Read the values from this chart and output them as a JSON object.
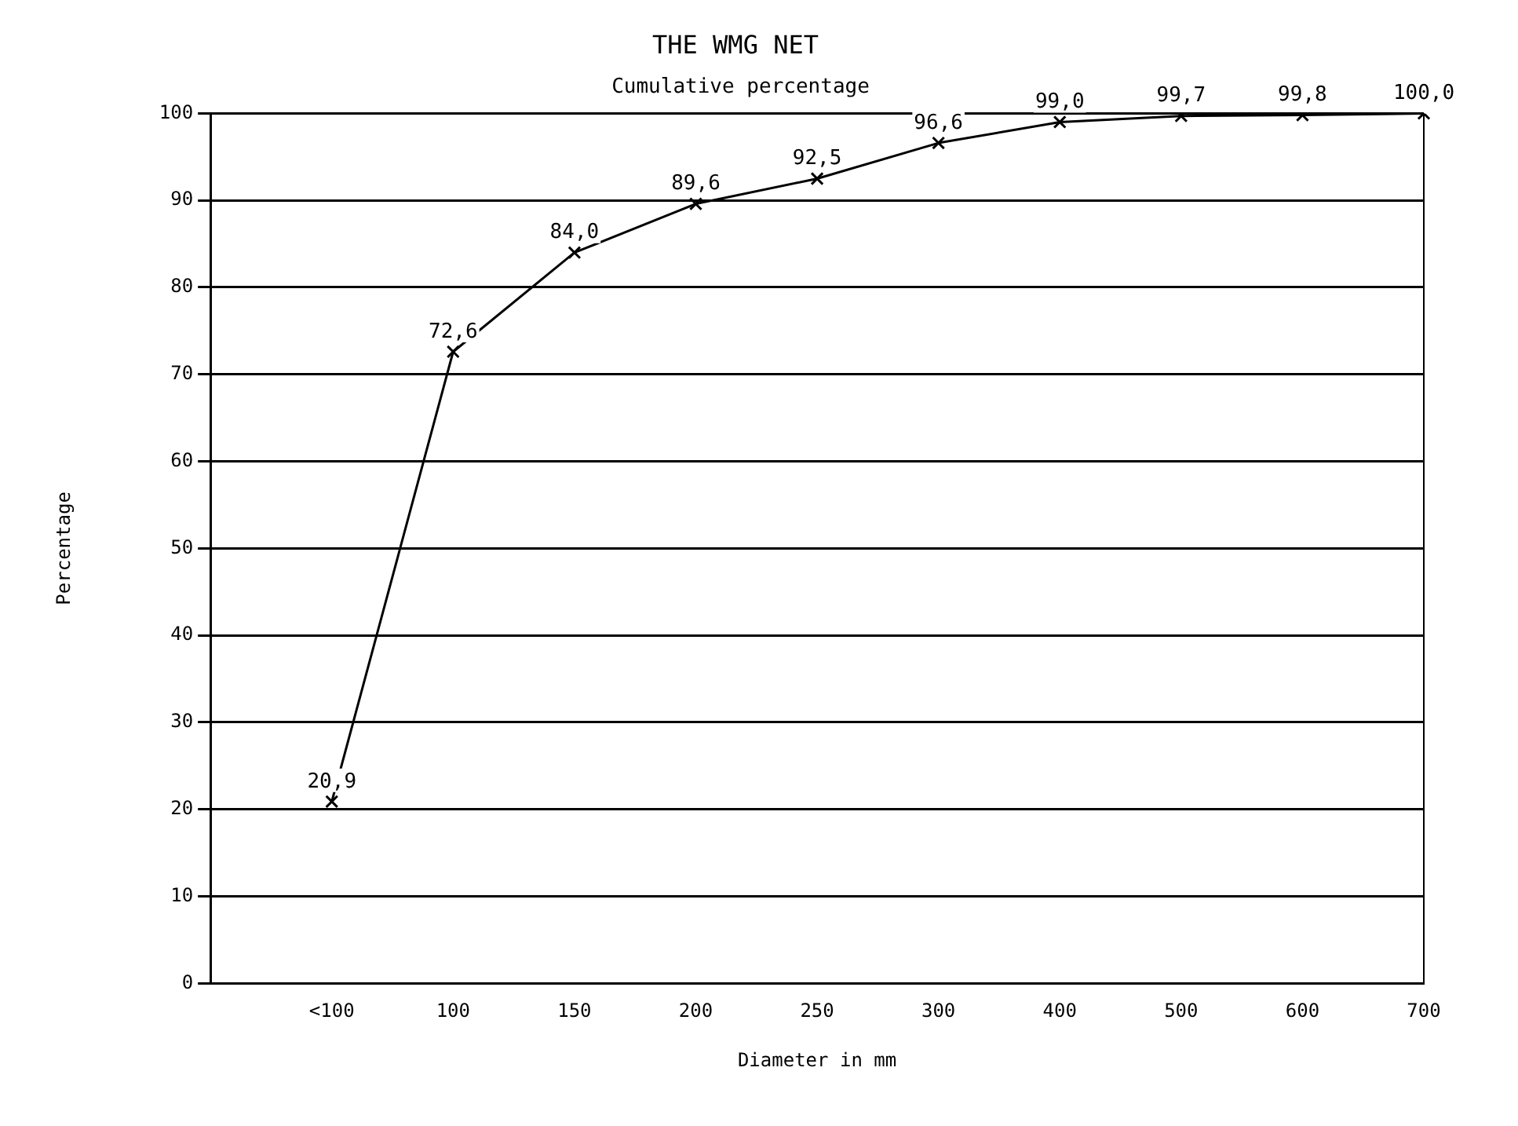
{
  "chart_data": {
    "type": "line",
    "title": "THE WMG NET",
    "xlabel": "Diameter in mm",
    "ylabel": "Percentage",
    "categories": [
      null,
      "<100",
      "100",
      "150",
      "200",
      "250",
      "300",
      "400",
      "500",
      "600",
      "700"
    ],
    "series": [
      {
        "name": "Cumulative percentage",
        "color": "#000000",
        "values": [
          null,
          20.9,
          72.6,
          84.0,
          89.6,
          92.5,
          96.6,
          99.0,
          99.7,
          99.8,
          100.0
        ],
        "value_labels": [
          null,
          "20,9",
          "72,6",
          "84,0",
          "89,6",
          "92,5",
          "96,6",
          "99,0",
          "99,7",
          "99,8",
          "100,0"
        ]
      }
    ],
    "ylim": [
      0,
      100
    ],
    "yticks": [
      0,
      10,
      20,
      30,
      40,
      50,
      60,
      70,
      80,
      90,
      100
    ],
    "grid": "y",
    "legend": "top",
    "marker": "cross",
    "line_style": "solid"
  }
}
